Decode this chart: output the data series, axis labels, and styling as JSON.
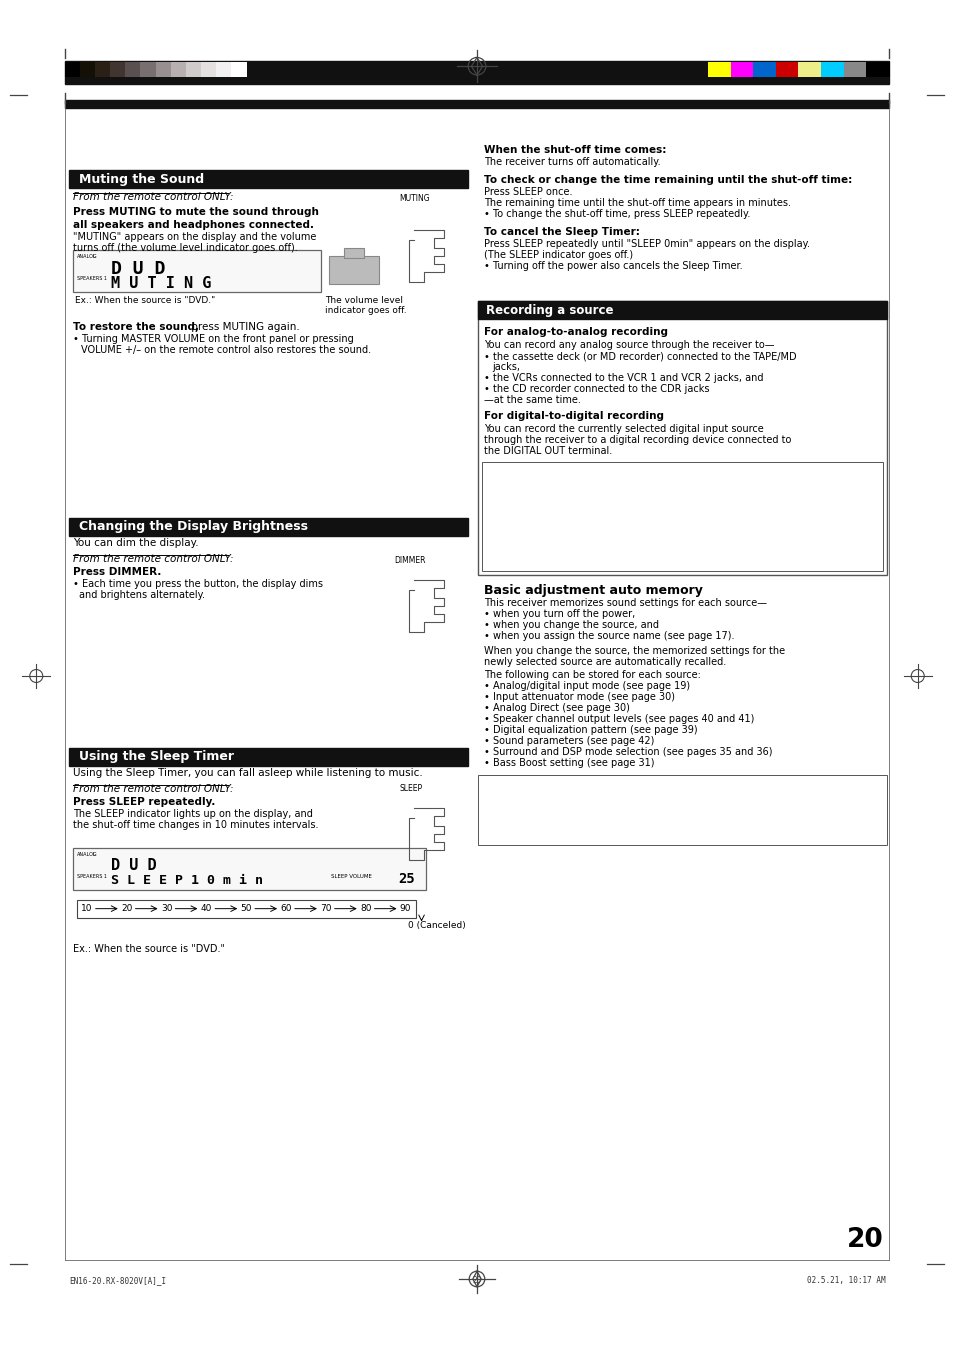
{
  "page_bg": "#ffffff",
  "grayscale_colors": [
    "#000000",
    "#151005",
    "#2a2015",
    "#403530",
    "#5a5050",
    "#787070",
    "#989090",
    "#b8b0b0",
    "#d0cccc",
    "#e4e0e0",
    "#f2f0f0",
    "#ffffff"
  ],
  "color_bars": [
    "#ffff00",
    "#ff00ff",
    "#0066cc",
    "#cc0000",
    "#eeee88",
    "#00ccff",
    "#888888",
    "#000000"
  ],
  "footer_left": "EN16-20.RX-8020V[A]_I",
  "footer_center": "20",
  "footer_right": "02.5.21, 10:17 AM",
  "lm": 0.068,
  "rm": 0.932,
  "col_mid": 0.497
}
